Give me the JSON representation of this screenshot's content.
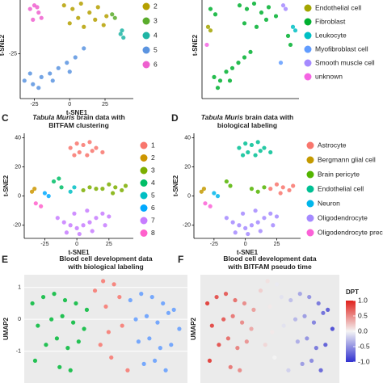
{
  "chart_data": [
    {
      "type": "scatter",
      "xlabel": "t-SNE1",
      "ylabel": "t-SNE2",
      "xlim": [
        -35,
        45
      ],
      "ylim": [
        -50,
        5
      ],
      "xticks": [
        -25,
        0,
        25
      ],
      "yticks": [
        -25
      ],
      "axis_lines": true,
      "series": [
        {
          "name": "2",
          "color": "#b5a000",
          "x": [
            -4,
            2,
            8,
            14,
            20,
            26,
            0,
            10,
            18,
            6,
            24
          ],
          "y": [
            2,
            0,
            3,
            -2,
            1,
            -4,
            -8,
            -10,
            -6,
            -5,
            -9
          ]
        },
        {
          "name": "3",
          "color": "#5aac2c",
          "x": [
            30,
            32
          ],
          "y": [
            -3,
            -5
          ]
        },
        {
          "name": "4",
          "color": "#1fb5a5",
          "x": [
            36,
            38,
            37
          ],
          "y": [
            -14,
            -16,
            -12
          ]
        },
        {
          "name": "5",
          "color": "#5b94e0",
          "x": [
            -32,
            -26,
            -20,
            -14,
            -8,
            -2,
            4,
            10,
            -22,
            -12,
            0,
            -28
          ],
          "y": [
            -40,
            -42,
            -38,
            -36,
            -33,
            -30,
            -27,
            -22,
            -44,
            -40,
            -35,
            -36
          ]
        },
        {
          "name": "6",
          "color": "#ee60cf",
          "x": [
            -28,
            -25,
            -22,
            -20,
            -26,
            -23
          ],
          "y": [
            0,
            2,
            -2,
            -5,
            -6,
            1
          ]
        }
      ]
    },
    {
      "type": "scatter",
      "ylabel": "t-SNE2",
      "xlim": [
        -35,
        45
      ],
      "ylim": [
        -50,
        5
      ],
      "axis_lines": true,
      "series": [
        {
          "name": "Endothelial cell",
          "color": "#a3a500",
          "x": [
            -30,
            -28
          ],
          "y": [
            -10,
            -12
          ]
        },
        {
          "name": "Fibroblast",
          "color": "#00b030",
          "x": [
            -4,
            2,
            8,
            14,
            20,
            26,
            0,
            10,
            18,
            -25,
            -20,
            -15,
            -10,
            -5,
            0,
            5,
            -22,
            -12,
            36,
            38,
            -28,
            -24
          ],
          "y": [
            2,
            0,
            3,
            -2,
            1,
            -4,
            -8,
            -10,
            -6,
            -38,
            -40,
            -35,
            -33,
            -30,
            -27,
            -24,
            -44,
            -40,
            -15,
            -20,
            0,
            -3
          ]
        },
        {
          "name": "Leukocyte",
          "color": "#00bfc4",
          "x": [
            40,
            42
          ],
          "y": [
            -10,
            -12
          ]
        },
        {
          "name": "Myofibroblast cell",
          "color": "#619cff",
          "x": [
            30
          ],
          "y": [
            -30
          ]
        },
        {
          "name": "Smooth muscle cell",
          "color": "#a58aff",
          "x": [
            32,
            34
          ],
          "y": [
            2,
            0
          ]
        },
        {
          "name": "unknown",
          "color": "#f564e3",
          "x": [
            -31
          ],
          "y": [
            -20
          ]
        }
      ]
    },
    {
      "type": "scatter",
      "panel": "C",
      "title_italic_first": true,
      "title_lines": [
        [
          "Tabula Muris",
          " brain data with"
        ],
        [
          "BITFAM clustering"
        ]
      ],
      "xlabel": "t-SNE1",
      "ylabel": "t-SNE2",
      "xlim": [
        -41,
        44
      ],
      "ylim": [
        -29,
        43
      ],
      "xticks": [
        -25,
        0,
        25
      ],
      "yticks": [
        40,
        20,
        0,
        -20
      ],
      "axis_lines": true,
      "series": [
        {
          "name": "1",
          "color": "#f8766d",
          "x": [
            -5,
            0,
            5,
            10,
            15,
            20,
            2,
            12,
            8,
            -2
          ],
          "y": [
            33,
            36,
            35,
            37,
            33,
            30,
            30,
            31,
            28,
            28
          ]
        },
        {
          "name": "2",
          "color": "#cd9600",
          "x": [
            -35,
            -33
          ],
          "y": [
            3,
            5
          ]
        },
        {
          "name": "3",
          "color": "#7cae00",
          "x": [
            20,
            25,
            30,
            35,
            38,
            28,
            5,
            10,
            15
          ],
          "y": [
            5,
            8,
            6,
            4,
            7,
            2,
            4,
            6,
            5
          ]
        },
        {
          "name": "4",
          "color": "#00be67",
          "x": [
            -18,
            -14,
            -12
          ],
          "y": [
            10,
            12,
            6
          ]
        },
        {
          "name": "5",
          "color": "#00bfc4",
          "x": [
            -5,
            -2
          ],
          "y": [
            3,
            6
          ]
        },
        {
          "name": "6",
          "color": "#00a9ff",
          "x": [
            -25,
            -22
          ],
          "y": [
            2,
            0
          ]
        },
        {
          "name": "7",
          "color": "#c77cff",
          "x": [
            -15,
            -10,
            -5,
            0,
            5,
            10,
            15,
            20,
            25,
            -8,
            2,
            12,
            22,
            -2,
            8
          ],
          "y": [
            -15,
            -18,
            -20,
            -22,
            -20,
            -18,
            -15,
            -12,
            -14,
            -25,
            -26,
            -24,
            -20,
            -12,
            -10
          ]
        },
        {
          "name": "8",
          "color": "#ff61cc",
          "x": [
            -32,
            -28
          ],
          "y": [
            -5,
            -7
          ]
        }
      ]
    },
    {
      "type": "scatter",
      "panel": "D",
      "title_italic_first": true,
      "title_lines": [
        [
          "Tabula Muris",
          " brain data with"
        ],
        [
          "biological labeling"
        ]
      ],
      "xlabel": "t-SNE1",
      "ylabel": "t-SNE2",
      "xlim": [
        -41,
        44
      ],
      "ylim": [
        -29,
        43
      ],
      "xticks": [
        -25,
        0,
        25
      ],
      "yticks": [
        40,
        20,
        0,
        -20
      ],
      "axis_lines": true,
      "series": [
        {
          "name": "Astrocyte",
          "color": "#f8766d",
          "x": [
            20,
            25,
            30,
            35,
            38,
            28
          ],
          "y": [
            5,
            8,
            6,
            4,
            7,
            2
          ]
        },
        {
          "name": "Bergmann glial cell",
          "color": "#c49a00",
          "x": [
            -35,
            -33
          ],
          "y": [
            3,
            5
          ]
        },
        {
          "name": "Brain pericyte",
          "color": "#53b400",
          "x": [
            5,
            10,
            15,
            -15,
            -12
          ],
          "y": [
            5,
            3,
            6,
            10,
            7
          ]
        },
        {
          "name": "Endothelial cell",
          "color": "#00c094",
          "x": [
            -5,
            0,
            5,
            10,
            15,
            20,
            2,
            12,
            8,
            -2
          ],
          "y": [
            33,
            36,
            35,
            37,
            33,
            30,
            30,
            31,
            28,
            28
          ]
        },
        {
          "name": "Neuron",
          "color": "#00b6eb",
          "x": [
            -25,
            -22
          ],
          "y": [
            2,
            0
          ]
        },
        {
          "name": "Oligodendrocyte",
          "color": "#a58aff",
          "x": [
            -15,
            -10,
            -5,
            0,
            5,
            10,
            15,
            20,
            25,
            -8,
            2,
            12,
            22,
            -2,
            8
          ],
          "y": [
            -15,
            -18,
            -20,
            -22,
            -20,
            -18,
            -15,
            -12,
            -14,
            -25,
            -26,
            -24,
            -20,
            -12,
            -10
          ]
        },
        {
          "name": "Oligodendrocyte precursor cell",
          "color": "#fb61d7",
          "x": [
            -32,
            -28
          ],
          "y": [
            -5,
            -7
          ]
        }
      ]
    },
    {
      "type": "scatter",
      "panel": "E",
      "title_lines": [
        [
          "Blood cell development data"
        ],
        [
          "with biological labeling"
        ]
      ],
      "ylabel": "UMAP2",
      "xlim": [
        -3,
        3
      ],
      "ylim": [
        -2,
        1.4
      ],
      "yticks": [
        1,
        0,
        -1
      ],
      "grid": true,
      "series": [
        {
          "color": "#00ba38",
          "x": [
            -2.7,
            -2.3,
            -1.9,
            -1.5,
            -1.1,
            -0.7,
            -2.5,
            -2.0,
            -1.6,
            -1.2,
            -0.8,
            -2.2,
            -1.8,
            -1.4,
            -1.0,
            -2.6,
            -1.7,
            -1.3
          ],
          "y": [
            0.5,
            0.7,
            0.8,
            0.6,
            0.5,
            0.3,
            -0.2,
            0,
            0.1,
            -0.1,
            -0.3,
            -0.8,
            -0.6,
            -0.9,
            -0.7,
            -1.3,
            -1.5,
            -1.6
          ]
        },
        {
          "color": "#f8766d",
          "x": [
            -0.4,
            0,
            0.3,
            0.6,
            -0.2,
            0.2,
            0.5,
            0.1,
            0.8,
            -0.1
          ],
          "y": [
            0.9,
            0.4,
            1.1,
            -0.2,
            -0.8,
            -1.2,
            0.7,
            -0.4,
            -1.6,
            1.2
          ]
        },
        {
          "color": "#619cff",
          "x": [
            0.9,
            1.3,
            1.7,
            2.1,
            2.5,
            1.1,
            1.5,
            1.9,
            2.3,
            2.7,
            1.2,
            1.6,
            2.0,
            2.4,
            1.4,
            1.8,
            2.2
          ],
          "y": [
            0.6,
            0.8,
            0.7,
            0.5,
            0.3,
            0,
            0.1,
            -0.1,
            0.2,
            -0.3,
            -0.7,
            -0.6,
            -0.9,
            -0.8,
            -1.4,
            -1.3,
            -1.6
          ]
        }
      ]
    },
    {
      "type": "scatter",
      "panel": "F",
      "title_lines": [
        [
          "Blood cell development data"
        ],
        [
          "with BITFAM pseudo time"
        ]
      ],
      "ylabel": "UMAP2",
      "xlim": [
        -3,
        3
      ],
      "ylim": [
        -2,
        1.4
      ],
      "grid": true,
      "colormap": [
        "#3030d0",
        "#f4f4f4",
        "#e0201b"
      ],
      "colorbar": {
        "title": "DPT",
        "lim": [
          -1,
          1
        ],
        "ticks": [
          {
            "value": 1,
            "label": "1.0"
          },
          0.5,
          {
            "value": 0,
            "label": "0.0"
          },
          -0.5,
          {
            "value": -1,
            "label": "-1.0"
          }
        ]
      },
      "series": [
        {
          "x": [
            -2.7,
            -2.3,
            -1.9,
            -1.5,
            -1.1,
            -0.7,
            -2.5,
            -2.0,
            -1.6,
            -1.2,
            -0.8,
            -2.2,
            -1.8,
            -1.4,
            -1.0,
            -2.6,
            -1.7,
            -1.3,
            -0.4,
            0,
            0.3,
            0.6,
            -0.2,
            0.2,
            0.5,
            0.1,
            0.8,
            -0.1,
            0.9,
            1.3,
            1.7,
            2.1,
            2.5,
            1.1,
            1.5,
            1.9,
            2.3,
            2.7,
            1.2,
            1.6,
            2.0,
            2.4,
            1.4,
            1.8,
            2.2
          ],
          "y": [
            0.5,
            0.7,
            0.8,
            0.6,
            0.5,
            0.3,
            -0.2,
            0,
            0.1,
            -0.1,
            -0.3,
            -0.8,
            -0.6,
            -0.9,
            -0.7,
            -1.3,
            -1.5,
            -1.6,
            0.9,
            0.4,
            1.1,
            -0.2,
            -0.8,
            -1.2,
            0.7,
            -0.4,
            -1.6,
            1.2,
            0.6,
            0.8,
            0.7,
            0.5,
            0.3,
            0,
            0.1,
            -0.1,
            0.2,
            -0.3,
            -0.7,
            -0.6,
            -0.9,
            -0.8,
            -1.4,
            -1.3,
            -1.6
          ],
          "values": [
            0.95,
            0.85,
            0.8,
            0.7,
            0.55,
            0.45,
            0.9,
            0.8,
            0.65,
            0.55,
            0.4,
            0.85,
            0.7,
            0.6,
            0.5,
            0.95,
            0.65,
            0.55,
            0.2,
            0.05,
            -0.05,
            -0.1,
            0.15,
            0,
            -0.1,
            0.05,
            -0.2,
            0.1,
            -0.3,
            -0.45,
            -0.55,
            -0.7,
            -0.85,
            -0.35,
            -0.5,
            -0.65,
            -0.75,
            -0.95,
            -0.4,
            -0.55,
            -0.7,
            -0.85,
            -0.5,
            -0.6,
            -0.8
          ]
        }
      ]
    }
  ]
}
